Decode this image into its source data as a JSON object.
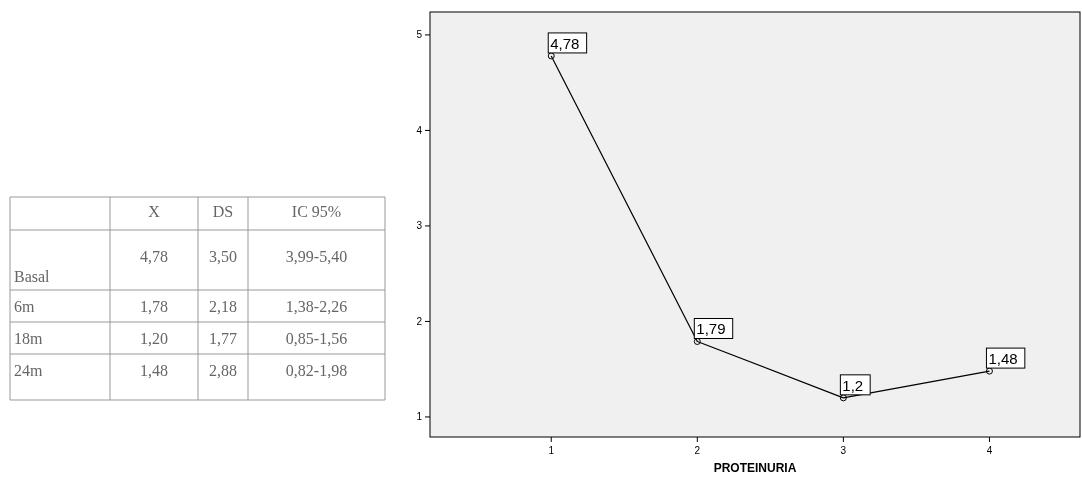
{
  "chart_data": [
    {
      "type": "heatmap",
      "categories": [
        "X",
        "DS",
        "IC 95%"
      ],
      "y_categories": [
        "Basal",
        "6m",
        "18m",
        "24m"
      ],
      "cells": [
        [
          null,
          null,
          null
        ],
        [
          null,
          null,
          null
        ],
        [
          null,
          null,
          null
        ],
        [
          null,
          null,
          null
        ]
      ],
      "cell_labels": [
        [
          "4,78",
          "3,50",
          "3,99-5,40"
        ],
        [
          "1,78",
          "2,18",
          "1,38-2,26"
        ],
        [
          "1,20",
          "1,77",
          "0,85-1,56"
        ],
        [
          "1,48",
          "2,88",
          "0,82-1,98"
        ]
      ]
    },
    {
      "type": "line",
      "xlabel": "PROTEINURIA",
      "x": [
        1,
        2,
        3,
        4
      ],
      "series": [
        {
          "color": "#000000",
          "values": [
            4.78,
            1.79,
            1.2,
            1.48
          ],
          "value_labels": [
            "4,78",
            "1,79",
            "1,2",
            "1,48"
          ]
        }
      ],
      "xlim": [
        0.17,
        4.62
      ],
      "xticks": [
        1,
        2,
        3,
        4
      ],
      "ylim": [
        0.79,
        5.24
      ],
      "yticks": [
        1,
        2,
        3,
        4,
        5
      ],
      "marker": "circle",
      "grid": false
    }
  ]
}
